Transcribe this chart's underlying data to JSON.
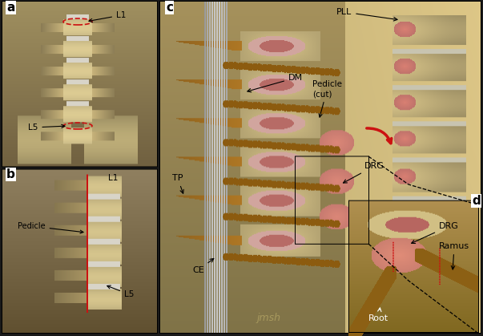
{
  "bg_color": "#1a1a1a",
  "bone_light": "#e8dfa0",
  "bone_mid": "#c8b870",
  "bone_dark": "#9a8040",
  "nerve_brown": "#8B5A10",
  "nerve_dark": "#6B4010",
  "disc_white": "#d8d4c0",
  "dura_silver": "#b8b8b8",
  "red_mark": "#cc1111",
  "pink_inner": "#c87878",
  "panel_border": "#000000",
  "panel_a_bg": "#c8c090",
  "panel_b_bg": "#b8b080",
  "panel_c_bg": "#d0c890",
  "panel_d_bg": "#c0a870",
  "watermark": "jmsh",
  "labels": {
    "a": "a",
    "b": "b",
    "c": "c",
    "d": "d",
    "L1_a": "L1",
    "L5_a": "L5",
    "L1_b": "L1",
    "L5_b": "L5",
    "Pedicle_b": "Pedicle",
    "PLL": "PLL",
    "DM": "DM",
    "Pedicle_cut": "Pedicle\n(cut)",
    "TP": "TP",
    "CE": "CE",
    "DRG_c": "DRG",
    "DRG_d": "DRG",
    "Root_d": "Root",
    "Ramus_d": "Ramus"
  }
}
